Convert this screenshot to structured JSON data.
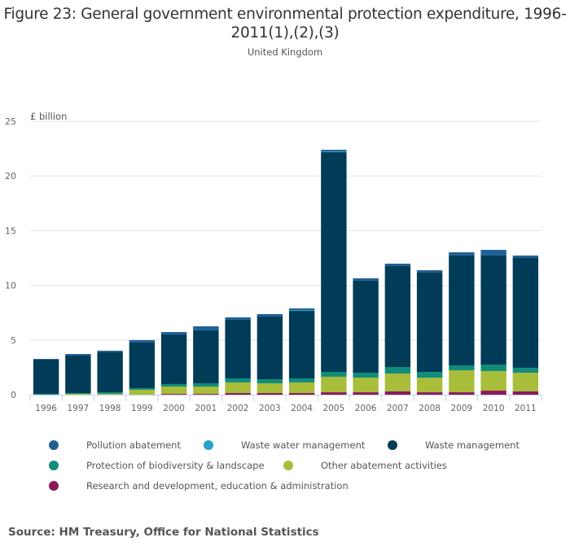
{
  "chart_data": {
    "type": "bar",
    "stacked": true,
    "title": "Figure 23: General government environmental protection expenditure, 1996-2011(1),(2),(3)",
    "subtitle": "United Kingdom",
    "ylabel": "£ billion",
    "xlabel": "",
    "ylim": [
      0,
      25
    ],
    "yticks": [
      0,
      5,
      10,
      15,
      20,
      25
    ],
    "grid": true,
    "legend_position": "bottom",
    "categories": [
      "1996",
      "1997",
      "1998",
      "1999",
      "2000",
      "2001",
      "2002",
      "2003",
      "2004",
      "2005",
      "2006",
      "2007",
      "2008",
      "2009",
      "2010",
      "2011"
    ],
    "series": [
      {
        "name": "Research and development, education & administration",
        "color": "#8a1a5b",
        "values": [
          0,
          0,
          0,
          0,
          0.07,
          0.07,
          0.15,
          0.15,
          0.15,
          0.22,
          0.22,
          0.3,
          0.22,
          0.22,
          0.37,
          0.3
        ]
      },
      {
        "name": "Other abatement activities",
        "color": "#a8bd3a",
        "values": [
          0,
          0.08,
          0.08,
          0.45,
          0.67,
          0.67,
          0.97,
          0.89,
          0.97,
          1.42,
          1.34,
          1.63,
          1.34,
          2.01,
          1.79,
          1.7
        ]
      },
      {
        "name": "Protection of biodiversity & landscape",
        "color": "#118c7b",
        "values": [
          0.08,
          0.07,
          0.14,
          0.15,
          0.23,
          0.3,
          0.37,
          0.37,
          0.37,
          0.44,
          0.44,
          0.6,
          0.52,
          0.45,
          0.59,
          0.46
        ]
      },
      {
        "name": "Waste management",
        "color": "#003c57",
        "values": [
          3.12,
          3.42,
          3.65,
          4.16,
          4.54,
          4.84,
          5.36,
          5.73,
          6.17,
          20.09,
          8.42,
          9.23,
          9.08,
          10.04,
          9.97,
          10.04
        ]
      },
      {
        "name": "Waste water management",
        "color": "#27a0cc",
        "values": [
          0,
          0,
          0,
          0,
          0,
          0,
          0,
          0,
          0.08,
          0.07,
          0,
          0,
          0,
          0,
          0,
          0
        ]
      },
      {
        "name": "Pollution abatement",
        "color": "#206095",
        "values": [
          0.07,
          0.15,
          0.15,
          0.23,
          0.22,
          0.37,
          0.22,
          0.23,
          0.15,
          0.15,
          0.22,
          0.22,
          0.22,
          0.3,
          0.52,
          0.22
        ]
      }
    ],
    "legend_order": [
      {
        "name": "Pollution abatement",
        "color": "#206095"
      },
      {
        "name": "Waste water management",
        "color": "#27a0cc"
      },
      {
        "name": "Waste management",
        "color": "#003c57"
      },
      {
        "name": "Protection of biodiversity & landscape",
        "color": "#118c7b"
      },
      {
        "name": "Other abatement activities",
        "color": "#a8bd3a"
      },
      {
        "name": "Research and development, education & administration",
        "color": "#8a1a5b"
      }
    ]
  },
  "source": "Source: HM Treasury, Office for National Statistics"
}
